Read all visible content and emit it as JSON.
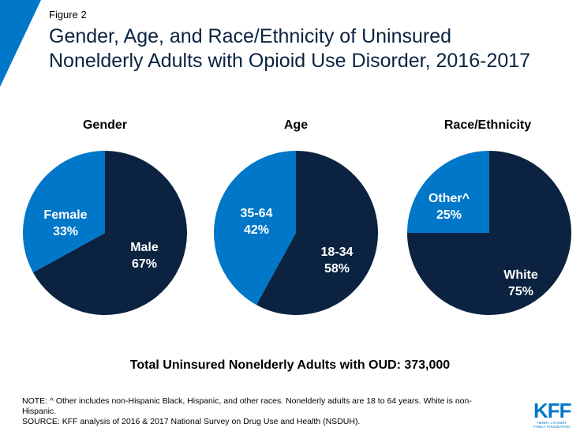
{
  "figure_label": "Figure 2",
  "title_lines": [
    "Gender, Age, and Race/Ethnicity of Uninsured",
    "Nonelderly Adults with Opioid Use Disorder, 2016-2017"
  ],
  "colors": {
    "dark_navy": "#0b2340",
    "medium_blue": "#0077c8",
    "corner_blue": "#0077c8"
  },
  "chart_data": [
    {
      "type": "pie",
      "title": "Gender",
      "slices": [
        {
          "label": "Female",
          "value": 33,
          "value_text": "33%",
          "color": "#0077c8"
        },
        {
          "label": "Male",
          "value": 67,
          "value_text": "67%",
          "color": "#0b2340"
        }
      ]
    },
    {
      "type": "pie",
      "title": "Age",
      "slices": [
        {
          "label": "35-64",
          "value": 42,
          "value_text": "42%",
          "color": "#0077c8"
        },
        {
          "label": "18-34",
          "value": 58,
          "value_text": "58%",
          "color": "#0b2340"
        }
      ]
    },
    {
      "type": "pie",
      "title": "Race/Ethnicity",
      "slices": [
        {
          "label": "Other^",
          "value": 25,
          "value_text": "25%",
          "color": "#0077c8"
        },
        {
          "label": "White",
          "value": 75,
          "value_text": "75%",
          "color": "#0b2340"
        }
      ]
    }
  ],
  "total_text": "Total Uninsured Nonelderly Adults with OUD: 373,000",
  "note_lines": [
    "NOTE: ^ Other includes non-Hispanic Black, Hispanic, and other races. Nonelderly adults are 18 to 64 years. White is non-",
    "Hispanic.",
    "SOURCE: KFF analysis of 2016 & 2017 National Survey on Drug Use and Health (NSDUH)."
  ],
  "logo": {
    "main": "KFF",
    "sub_lines": [
      "HENRY J KAISER",
      "FAMILY FOUNDATION"
    ]
  }
}
